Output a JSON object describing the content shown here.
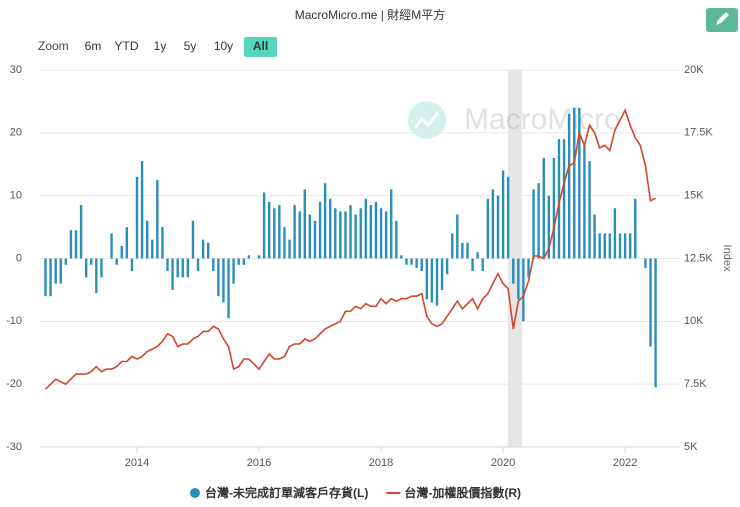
{
  "chart_data": {
    "type": "combo",
    "title": "MacroMicro.me | 財經M平方",
    "watermark": "MacroMicro",
    "range_selector": {
      "label": "Zoom",
      "buttons": [
        "6m",
        "YTD",
        "1y",
        "5y",
        "10y",
        "All"
      ],
      "selected": 5
    },
    "y2_label": "Index",
    "x": [
      2012.5,
      2012.583,
      2012.667,
      2012.75,
      2012.833,
      2012.917,
      2013,
      2013.083,
      2013.167,
      2013.25,
      2013.333,
      2013.417,
      2013.5,
      2013.583,
      2013.667,
      2013.75,
      2013.833,
      2013.917,
      2014,
      2014.083,
      2014.167,
      2014.25,
      2014.333,
      2014.417,
      2014.5,
      2014.583,
      2014.667,
      2014.75,
      2014.833,
      2014.917,
      2015,
      2015.083,
      2015.167,
      2015.25,
      2015.333,
      2015.417,
      2015.5,
      2015.583,
      2015.667,
      2015.75,
      2015.833,
      2015.917,
      2016,
      2016.083,
      2016.167,
      2016.25,
      2016.333,
      2016.417,
      2016.5,
      2016.583,
      2016.667,
      2016.75,
      2016.833,
      2016.917,
      2017,
      2017.083,
      2017.167,
      2017.25,
      2017.333,
      2017.417,
      2017.5,
      2017.583,
      2017.667,
      2017.75,
      2017.833,
      2017.917,
      2018,
      2018.083,
      2018.167,
      2018.25,
      2018.333,
      2018.417,
      2018.5,
      2018.583,
      2018.667,
      2018.75,
      2018.833,
      2018.917,
      2019,
      2019.083,
      2019.167,
      2019.25,
      2019.333,
      2019.417,
      2019.5,
      2019.583,
      2019.667,
      2019.75,
      2019.833,
      2019.917,
      2020,
      2020.083,
      2020.167,
      2020.25,
      2020.333,
      2020.417,
      2020.5,
      2020.583,
      2020.667,
      2020.75,
      2020.833,
      2020.917,
      2021,
      2021.083,
      2021.167,
      2021.25,
      2021.333,
      2021.417,
      2021.5,
      2021.583,
      2021.667,
      2021.75,
      2021.833,
      2021.917,
      2022,
      2022.083,
      2022.167,
      2022.25,
      2022.333,
      2022.417,
      2022.5
    ],
    "series": [
      {
        "name": "台灣-未完成訂單減客戶存貨(L)",
        "type": "bar",
        "color": "#2a8fb8",
        "axis": "y",
        "values": [
          -6,
          -6,
          -4,
          -4,
          -1,
          4.5,
          4.5,
          8.5,
          -3,
          -1,
          -5.5,
          -3,
          0,
          4,
          -1,
          2,
          5,
          -2,
          13,
          15.5,
          6,
          3,
          12.5,
          5,
          -2,
          -5,
          -3,
          -3,
          -3,
          6,
          -2,
          3,
          2.5,
          -2,
          -6,
          -7,
          -9.5,
          -4,
          -1,
          -1,
          0.5,
          0,
          0.5,
          10.5,
          9,
          8,
          8.5,
          5,
          3,
          8.5,
          7.5,
          11,
          7,
          6,
          9,
          12,
          9.5,
          8,
          7.5,
          7.5,
          8.5,
          7,
          8,
          9.5,
          8.5,
          9,
          8,
          7.5,
          11,
          6,
          0.5,
          -1,
          -1,
          -1.5,
          -2,
          -6.5,
          -7,
          -7.5,
          -5,
          -2.5,
          4,
          7,
          2.5,
          2.5,
          -2,
          1,
          -2,
          9.5,
          11,
          10,
          14,
          13,
          -4,
          -6.5,
          -10,
          -3,
          11,
          12,
          16,
          10,
          16,
          19,
          19,
          23,
          24,
          24,
          18,
          15.5,
          7,
          4,
          4,
          4,
          8,
          4,
          4,
          4,
          9.5,
          0,
          -1.5,
          -14,
          -20.5
        ]
      },
      {
        "name": "台灣-加權股價指數(R)",
        "type": "line",
        "color": "#d5452b",
        "axis": "y2",
        "values": [
          7300,
          7500,
          7700,
          7600,
          7500,
          7700,
          7900,
          7900,
          7900,
          8000,
          8200,
          8000,
          8100,
          8100,
          8200,
          8400,
          8400,
          8600,
          8500,
          8600,
          8800,
          8900,
          9000,
          9200,
          9500,
          9400,
          9000,
          9100,
          9100,
          9300,
          9400,
          9600,
          9600,
          9800,
          9700,
          9300,
          9000,
          8100,
          8200,
          8500,
          8500,
          8300,
          8100,
          8400,
          8700,
          8500,
          8500,
          8600,
          9000,
          9100,
          9100,
          9300,
          9200,
          9300,
          9500,
          9700,
          9800,
          9900,
          10000,
          10400,
          10400,
          10600,
          10500,
          10700,
          10600,
          10600,
          10900,
          10700,
          10900,
          10800,
          10900,
          10900,
          11000,
          11000,
          11100,
          10200,
          9900,
          9800,
          9900,
          10200,
          10500,
          10800,
          10500,
          10700,
          10900,
          10500,
          10900,
          11100,
          11500,
          11900,
          11500,
          11300,
          9700,
          10800,
          11000,
          11600,
          12600,
          12600,
          12500,
          12900,
          13700,
          14700,
          15500,
          16200,
          16300,
          17500,
          17000,
          17800,
          17500,
          16900,
          17000,
          16800,
          17600,
          18000,
          18400,
          17800,
          17300,
          17000,
          16200,
          14800,
          14900
        ]
      }
    ],
    "shaded_ranges": [
      [
        2020.08,
        2020.31
      ]
    ],
    "xlim": [
      2012.41,
      2022.9
    ],
    "xticks": [
      2014,
      2016,
      2018,
      2020,
      2022
    ],
    "ylim": [
      -30,
      30
    ],
    "yticks": [
      -30,
      -20,
      -10,
      0,
      10,
      20,
      30
    ],
    "y2lim": [
      5000,
      20000
    ],
    "y2ticks": [
      {
        "value": 5000,
        "label": "5K"
      },
      {
        "value": 7500,
        "label": "7.5K"
      },
      {
        "value": 10000,
        "label": "10K"
      },
      {
        "value": 12500,
        "label": "12.5K"
      },
      {
        "value": 15000,
        "label": "15K"
      },
      {
        "value": 17500,
        "label": "17.5K"
      },
      {
        "value": 20000,
        "label": "20K"
      }
    ],
    "grid": true,
    "legend": "bottom"
  }
}
